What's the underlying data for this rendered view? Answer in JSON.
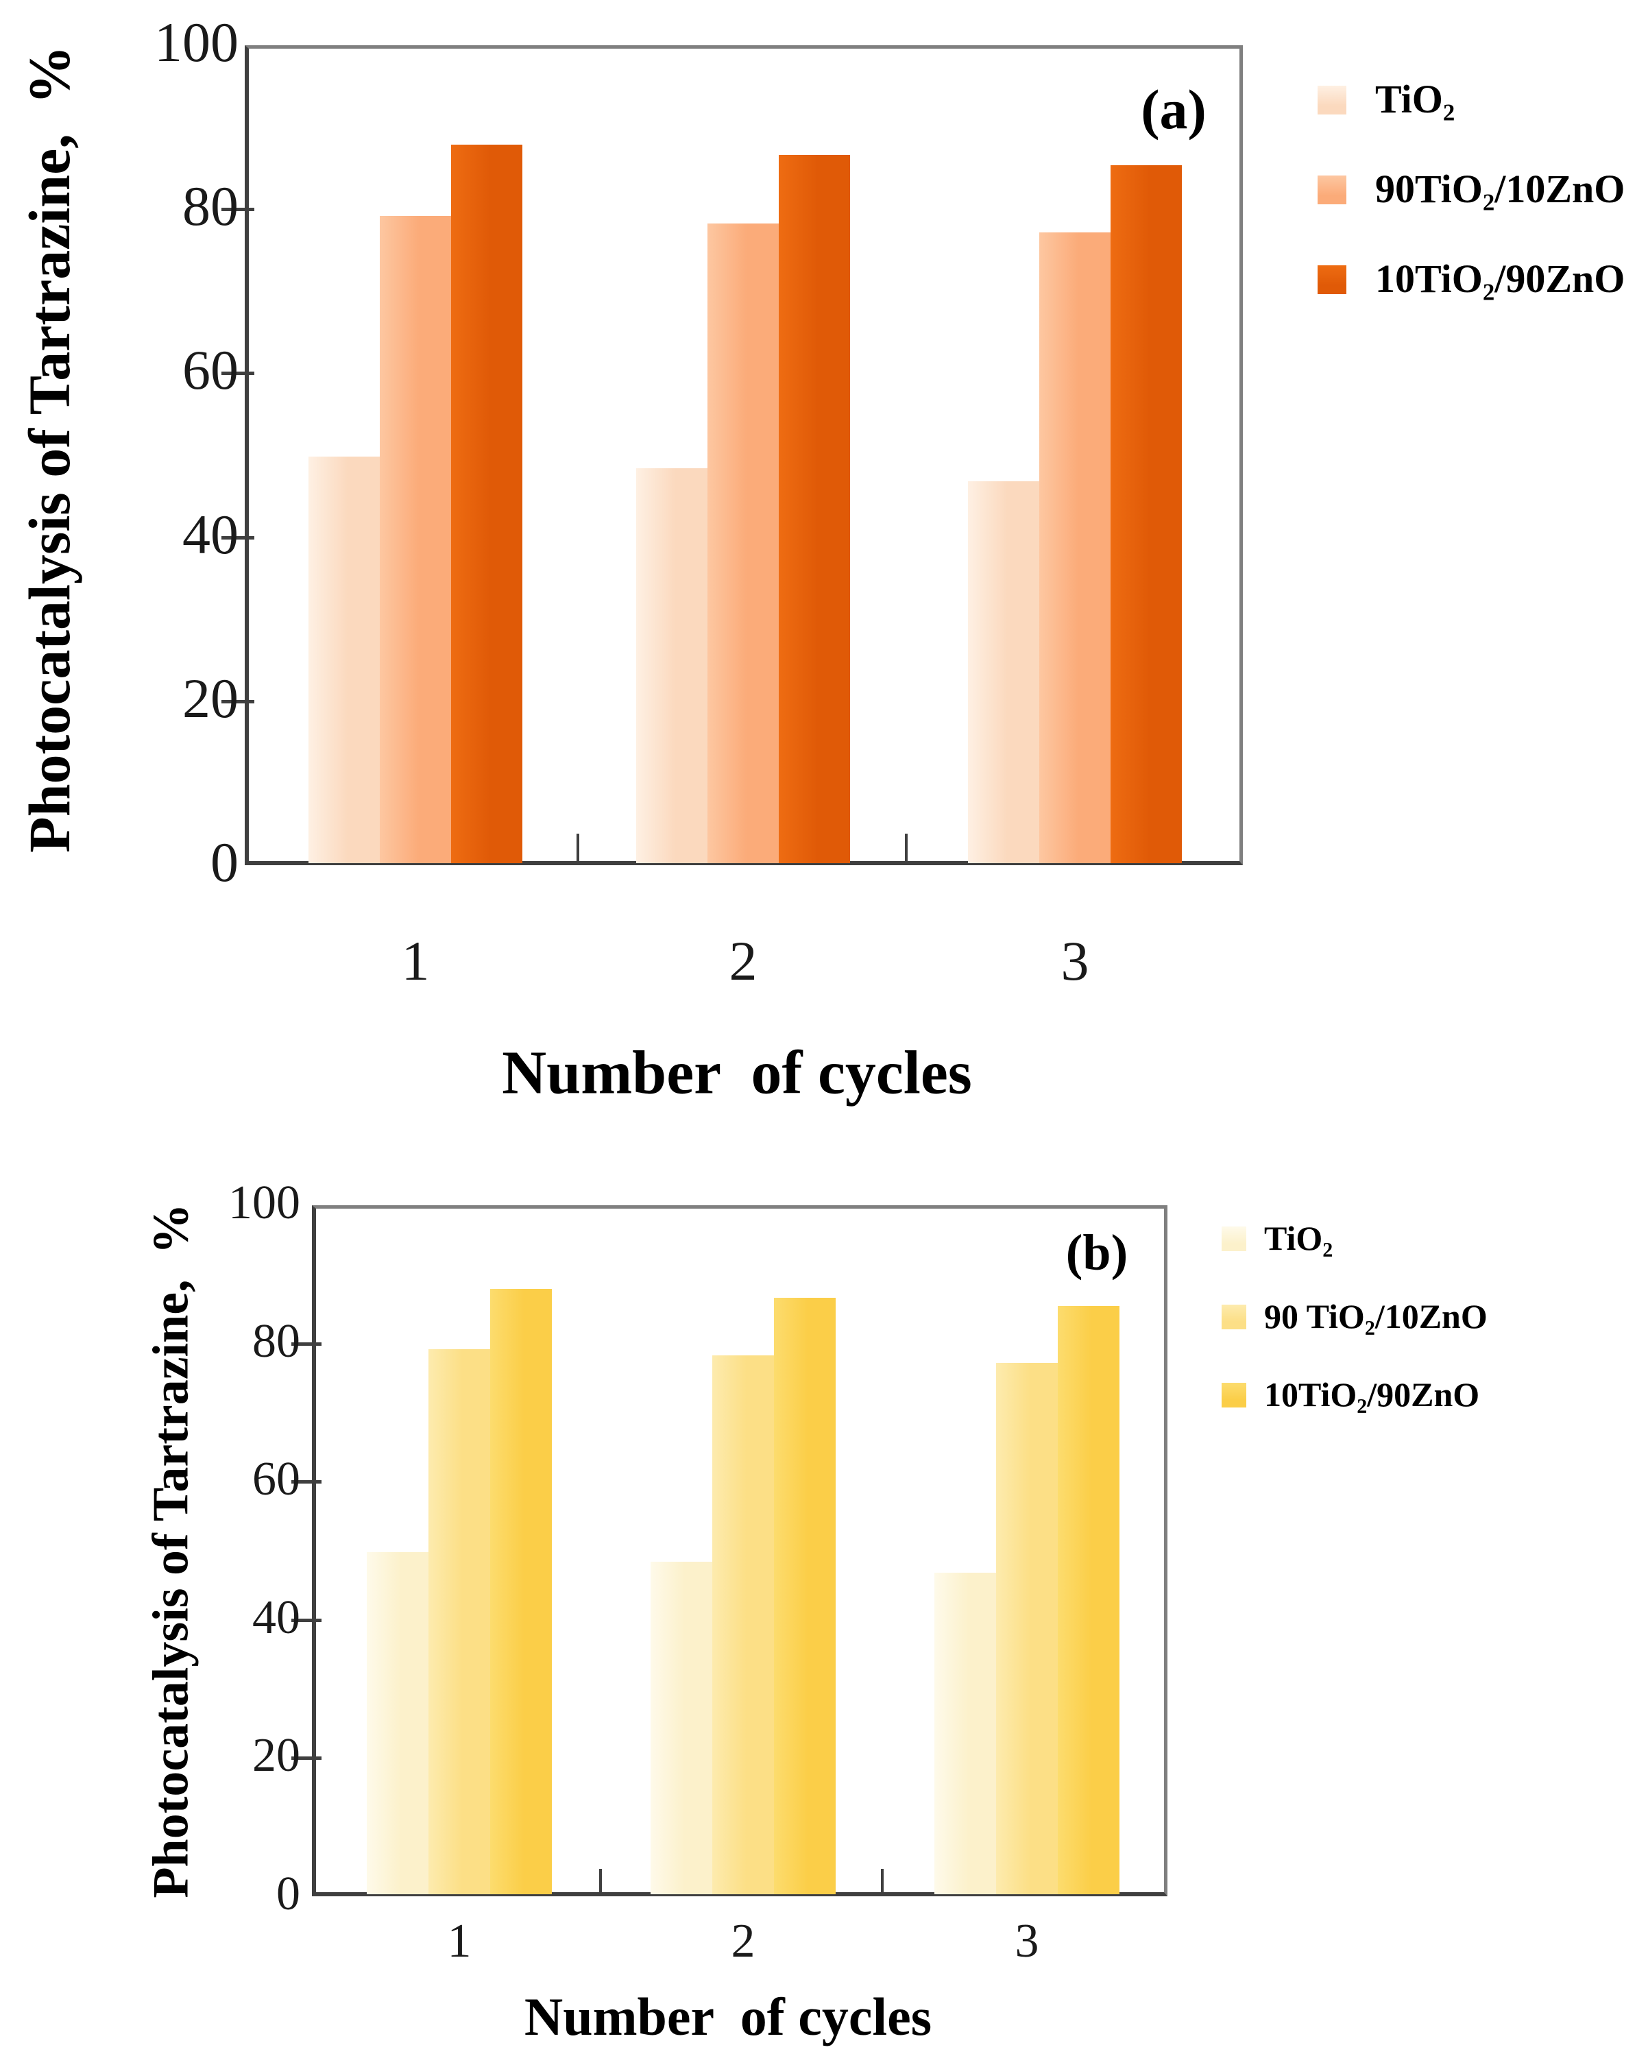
{
  "figure": {
    "background": "#FFFFFF",
    "frame_color_light": "#7F7F7F",
    "frame_color_dark": "#3F3F3F",
    "text_color": "#000000"
  },
  "chart_data": [
    {
      "type": "bar",
      "panel_label": "(a)",
      "xlabel": "Number  of cycles",
      "ylabel": "Photocatalysis of Tartrazine,  %",
      "categories": [
        "1",
        "2",
        "3"
      ],
      "yticks": [
        0,
        20,
        40,
        60,
        80,
        100
      ],
      "ylim": [
        0,
        100
      ],
      "grid": false,
      "legend_position": "outside-top-right",
      "series": [
        {
          "name": "TiO2",
          "label": "TiO₂",
          "color": "#FBD9BE",
          "color_edge": "#FEF0E3",
          "values": [
            49.8,
            48.4,
            46.8
          ]
        },
        {
          "name": "90TiO2/10ZnO",
          "label": "90TiO₂/10ZnO",
          "color": "#FBAB79",
          "color_edge": "#FDC7A1",
          "values": [
            79.2,
            78.3,
            77.2
          ]
        },
        {
          "name": "10TiO2/90ZnO",
          "label": "10TiO₂/90ZnO",
          "color": "#E05A07",
          "color_edge": "#EE6C12",
          "values": [
            87.9,
            86.6,
            85.4
          ]
        }
      ]
    },
    {
      "type": "bar",
      "panel_label": "(b)",
      "xlabel": "Number  of cycles",
      "ylabel": "Photocatalysis of Tartrazine,  %",
      "categories": [
        "1",
        "2",
        "3"
      ],
      "yticks": [
        0,
        20,
        40,
        60,
        80,
        100
      ],
      "ylim": [
        0,
        100
      ],
      "grid": false,
      "legend_position": "outside-top-right",
      "series": [
        {
          "name": "TiO2",
          "label": "TiO₂",
          "color": "#FCF1CB",
          "color_edge": "#FEFAEA",
          "values": [
            49.8,
            48.4,
            46.8
          ]
        },
        {
          "name": "90TiO2/10ZnO",
          "label": "90 TiO₂/10ZnO",
          "color": "#FCDF86",
          "color_edge": "#FDEBAE",
          "values": [
            79.2,
            78.3,
            77.2
          ]
        },
        {
          "name": "10TiO2/90ZnO",
          "label": "10TiO₂/90ZnO",
          "color": "#FBCE48",
          "color_edge": "#FCDC6E",
          "values": [
            87.9,
            86.6,
            85.4
          ]
        }
      ]
    }
  ]
}
